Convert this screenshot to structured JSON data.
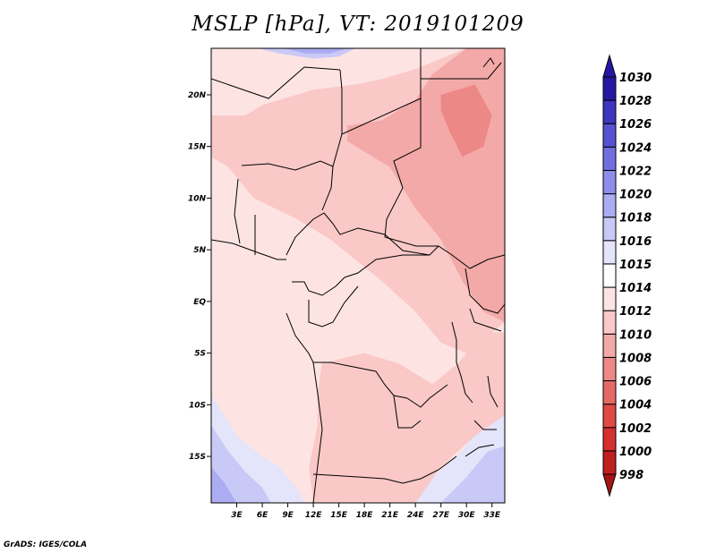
{
  "chart_data": {
    "type": "heatmap",
    "title": "MSLP [hPa], VT: 2019101209",
    "variable": "MSLP",
    "units": "hPa",
    "valid_time": "2019101209",
    "xlim": [
      0,
      34.5
    ],
    "ylim": [
      -19.5,
      24.5
    ],
    "x_ticks": [
      {
        "value": 3,
        "label": "3E"
      },
      {
        "value": 6,
        "label": "6E"
      },
      {
        "value": 9,
        "label": "9E"
      },
      {
        "value": 12,
        "label": "12E"
      },
      {
        "value": 15,
        "label": "15E"
      },
      {
        "value": 18,
        "label": "18E"
      },
      {
        "value": 21,
        "label": "21E"
      },
      {
        "value": 24,
        "label": "24E"
      },
      {
        "value": 27,
        "label": "27E"
      },
      {
        "value": 30,
        "label": "30E"
      },
      {
        "value": 33,
        "label": "33E"
      }
    ],
    "y_ticks": [
      {
        "value": 20,
        "label": "20N"
      },
      {
        "value": 15,
        "label": "15N"
      },
      {
        "value": 10,
        "label": "10N"
      },
      {
        "value": 5,
        "label": "5N"
      },
      {
        "value": 0,
        "label": "EQ"
      },
      {
        "value": -5,
        "label": "5S"
      },
      {
        "value": -10,
        "label": "10S"
      },
      {
        "value": -15,
        "label": "15S"
      }
    ],
    "levels": [
      {
        "label": "998",
        "color": "#a51515"
      },
      {
        "label": "1000",
        "color": "#c0201e"
      },
      {
        "label": "1002",
        "color": "#d5302d"
      },
      {
        "label": "1004",
        "color": "#e04a45"
      },
      {
        "label": "1006",
        "color": "#e56a66"
      },
      {
        "label": "1008",
        "color": "#ec8886"
      },
      {
        "label": "1010",
        "color": "#f3a9a8"
      },
      {
        "label": "1012",
        "color": "#f9c8c7"
      },
      {
        "label": "1014",
        "color": "#fde4e3"
      },
      {
        "label": "1015",
        "color": "#ffffff"
      },
      {
        "label": "1016",
        "color": "#e4e4fb"
      },
      {
        "label": "1018",
        "color": "#c9c9f7"
      },
      {
        "label": "1020",
        "color": "#acacf2"
      },
      {
        "label": "1022",
        "color": "#8e8deb"
      },
      {
        "label": "1024",
        "color": "#716fe0"
      },
      {
        "label": "1026",
        "color": "#5552d1"
      },
      {
        "label": "1028",
        "color": "#3b35bf"
      },
      {
        "label": "1030",
        "color": "#2617a2"
      }
    ],
    "colorbar_extra_colors": {
      "below": "#a51515",
      "above": "#2617a2"
    },
    "colorbar_orientation": "vertical-right",
    "regions": [
      {
        "name": "north-sahara-high",
        "color": "#c9c9f7",
        "points": [
          [
            5.5,
            24.5
          ],
          [
            8,
            24
          ],
          [
            12,
            23.5
          ],
          [
            15,
            23.7
          ],
          [
            17,
            24.5
          ]
        ]
      },
      {
        "name": "north-sahara-high-core",
        "color": "#acacf2",
        "points": [
          [
            8.5,
            24.5
          ],
          [
            11,
            24
          ],
          [
            14,
            24
          ],
          [
            16,
            24.5
          ]
        ]
      },
      {
        "name": "south-atlantic-high",
        "color": "#e4e4fb",
        "points": [
          [
            0,
            -9
          ],
          [
            3,
            -13
          ],
          [
            6,
            -15
          ],
          [
            8,
            -16
          ],
          [
            10,
            -18
          ],
          [
            11,
            -19.5
          ],
          [
            0,
            -19.5
          ]
        ]
      },
      {
        "name": "south-atlantic-high-2",
        "color": "#c9c9f7",
        "points": [
          [
            0,
            -12
          ],
          [
            2,
            -14.5
          ],
          [
            4,
            -16.5
          ],
          [
            6,
            -18
          ],
          [
            7,
            -19.5
          ],
          [
            0,
            -19.5
          ]
        ]
      },
      {
        "name": "south-atlantic-high-core",
        "color": "#acacf2",
        "points": [
          [
            0,
            -16
          ],
          [
            1.5,
            -17.5
          ],
          [
            3,
            -19.5
          ],
          [
            0,
            -19.5
          ]
        ]
      },
      {
        "name": "mozambique-high",
        "color": "#e4e4fb",
        "points": [
          [
            21,
            -19.5
          ],
          [
            26,
            -17
          ],
          [
            29.5,
            -14.5
          ],
          [
            31.5,
            -12
          ],
          [
            33.5,
            -11
          ],
          [
            34.5,
            -11
          ],
          [
            34.5,
            -19.5
          ]
        ]
      },
      {
        "name": "mozambique-high-core",
        "color": "#c9c9f7",
        "points": [
          [
            27,
            -19.5
          ],
          [
            30,
            -17
          ],
          [
            32.5,
            -14.5
          ],
          [
            34.5,
            -14
          ],
          [
            34.5,
            -19.5
          ]
        ]
      },
      {
        "name": "sahel-low",
        "color": "#f9c8c7",
        "points": [
          [
            0,
            16
          ],
          [
            6,
            19
          ],
          [
            12,
            20.5
          ],
          [
            17,
            21
          ],
          [
            20,
            21.5
          ],
          [
            24,
            22.5
          ],
          [
            30,
            24.5
          ],
          [
            34.5,
            24.5
          ],
          [
            34.5,
            -2
          ],
          [
            30,
            -5
          ],
          [
            27,
            -4
          ],
          [
            24,
            -1
          ],
          [
            20,
            2
          ],
          [
            17,
            4
          ],
          [
            14,
            6
          ],
          [
            10,
            8
          ],
          [
            5,
            10
          ],
          [
            2,
            13
          ],
          [
            0,
            14
          ]
        ]
      },
      {
        "name": "sudan-low",
        "color": "#f3a9a8",
        "points": [
          [
            16,
            17
          ],
          [
            20,
            17.5
          ],
          [
            24,
            19.5
          ],
          [
            26,
            22
          ],
          [
            30,
            24.5
          ],
          [
            34.5,
            24.5
          ],
          [
            34.5,
            -2
          ],
          [
            32,
            -1
          ],
          [
            29.5,
            2
          ],
          [
            27,
            6
          ],
          [
            24,
            9
          ],
          [
            21,
            13
          ],
          [
            18,
            14.5
          ],
          [
            16,
            15.5
          ]
        ]
      },
      {
        "name": "sudan-low-core",
        "color": "#ec8886",
        "points": [
          [
            27,
            20
          ],
          [
            31,
            21
          ],
          [
            33,
            18
          ],
          [
            32,
            15
          ],
          [
            29.5,
            14
          ],
          [
            28,
            16.5
          ],
          [
            27,
            18.5
          ]
        ]
      },
      {
        "name": "angola-low",
        "color": "#f9c8c7",
        "points": [
          [
            13,
            -6
          ],
          [
            18,
            -5
          ],
          [
            22,
            -6
          ],
          [
            26,
            -8
          ],
          [
            29,
            -6
          ],
          [
            32,
            -3
          ],
          [
            34.5,
            -3
          ],
          [
            34.5,
            -11
          ],
          [
            31,
            -13
          ],
          [
            27,
            -16
          ],
          [
            24,
            -19.5
          ],
          [
            12,
            -19.5
          ],
          [
            11.5,
            -16
          ],
          [
            12.5,
            -12
          ],
          [
            12.5,
            -9
          ]
        ]
      },
      {
        "name": "west-coast-trough",
        "color": "#f9c8c7",
        "points": [
          [
            0,
            16
          ],
          [
            2,
            14
          ],
          [
            4,
            12
          ],
          [
            6,
            12
          ],
          [
            8,
            14
          ],
          [
            7,
            17
          ],
          [
            4,
            18
          ],
          [
            0,
            18
          ]
        ]
      }
    ]
  }
}
